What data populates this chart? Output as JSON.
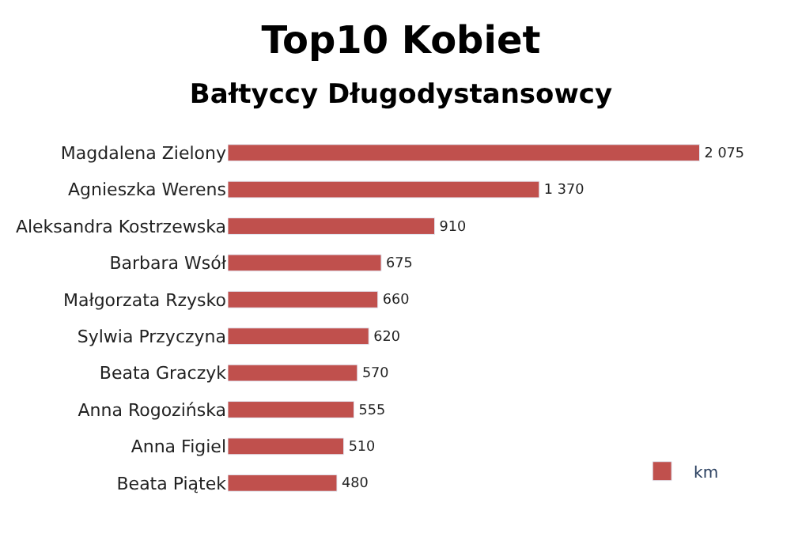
{
  "chart_data": {
    "type": "bar",
    "orientation": "horizontal",
    "title": "Top10 Kobiet",
    "subtitle": "Bałtyccy Długodystansowcy",
    "categories": [
      "Magdalena Zielony",
      "Agnieszka Werens",
      "Aleksandra Kostrzewska",
      "Barbara Wsół",
      "Małgorzata Rzysko",
      "Sylwia Przyczyna",
      "Beata Graczyk",
      "Anna Rogozińska",
      "Anna Figiel",
      "Beata Piątek"
    ],
    "series": [
      {
        "name": "km",
        "color": "#c0504d",
        "values": [
          2075,
          1370,
          910,
          675,
          660,
          620,
          570,
          555,
          510,
          480
        ],
        "value_labels": [
          "2 075",
          "1 370",
          "910",
          "675",
          "660",
          "620",
          "570",
          "555",
          "510",
          "480"
        ]
      }
    ],
    "legend": "bottom right"
  }
}
